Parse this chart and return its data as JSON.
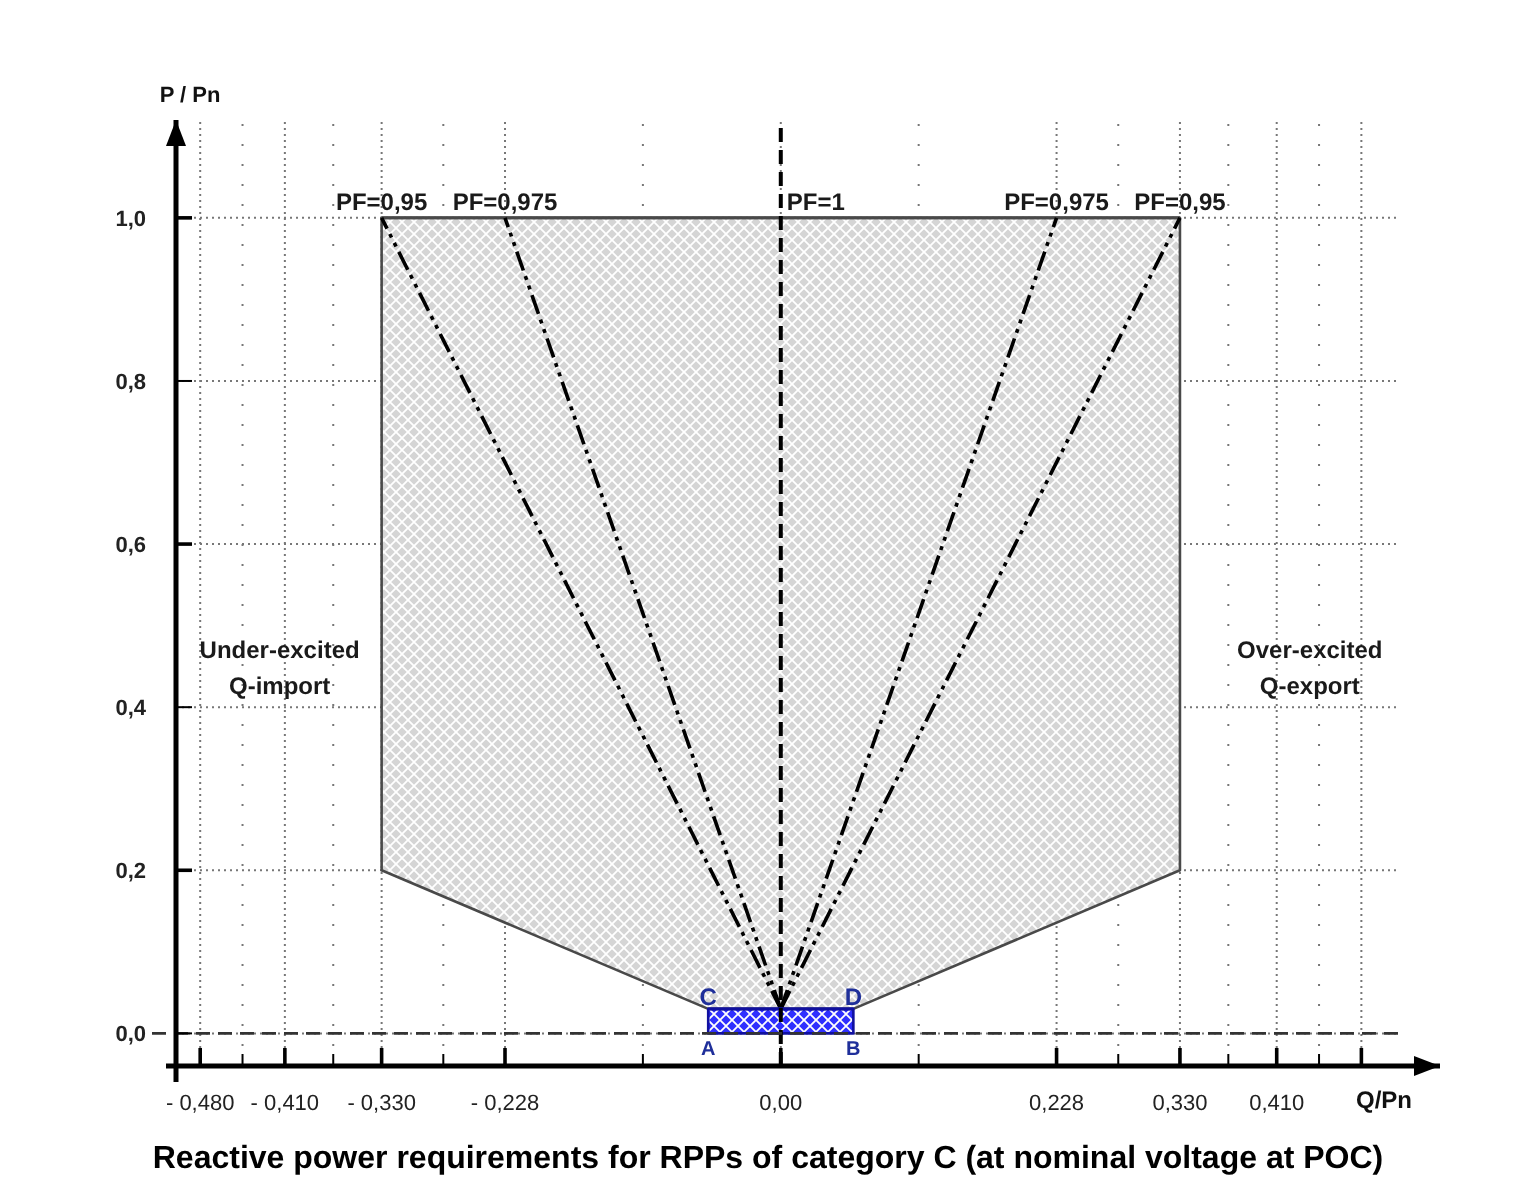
{
  "chart_data": {
    "type": "line",
    "title": "Reactive power requirements for RPPs of category C (at nominal voltage at POC)",
    "xlabel": "Q/Pn",
    "ylabel": "P / Pn",
    "xlim": [
      -0.5,
      0.545
    ],
    "ylim": [
      -0.04,
      1.12
    ],
    "xticks": [
      {
        "value": -0.48,
        "label": "- 0,480"
      },
      {
        "value": -0.445,
        "label": null
      },
      {
        "value": -0.41,
        "label": "- 0,410"
      },
      {
        "value": -0.37,
        "label": null
      },
      {
        "value": -0.33,
        "label": "- 0,330"
      },
      {
        "value": -0.279,
        "label": null
      },
      {
        "value": -0.228,
        "label": "- 0,228"
      },
      {
        "value": -0.114,
        "label": null
      },
      {
        "value": 0,
        "label": "0,00"
      },
      {
        "value": 0.114,
        "label": null
      },
      {
        "value": 0.228,
        "label": "0,228"
      },
      {
        "value": 0.279,
        "label": null
      },
      {
        "value": 0.33,
        "label": "0,330"
      },
      {
        "value": 0.37,
        "label": null
      },
      {
        "value": 0.41,
        "label": "0,410"
      },
      {
        "value": 0.445,
        "label": null
      },
      {
        "value": 0.48,
        "label": null
      }
    ],
    "yticks": [
      {
        "value": 0,
        "label": "0,0"
      },
      {
        "value": 0.2,
        "label": "0,2"
      },
      {
        "value": 0.4,
        "label": "0,4"
      },
      {
        "value": 0.6,
        "label": "0,6"
      },
      {
        "value": 0.8,
        "label": "0,8"
      },
      {
        "value": 1,
        "label": "1,0"
      }
    ],
    "grid": true,
    "series": [
      {
        "color": "#494949",
        "x": [
          -0.33,
          -0.06,
          0.06,
          0.33
        ],
        "values": [
          1,
          1,
          1,
          1
        ],
        "lower": [
          0.2,
          0.03,
          0.03,
          0.2
        ],
        "upper": [
          1,
          1,
          1,
          1
        ]
      },
      {
        "name": "PF=0,95",
        "color": "#000000",
        "line_style": "dashed",
        "x": [
          0,
          -0.33
        ],
        "values": [
          0.03,
          1
        ]
      },
      {
        "name": "PF=0,975",
        "color": "#000000",
        "line_style": "dashed",
        "x": [
          0,
          -0.228
        ],
        "values": [
          0.03,
          1
        ]
      },
      {
        "name": "PF=0,975",
        "color": "#000000",
        "line_style": "dashed",
        "x": [
          0,
          0.228
        ],
        "values": [
          0.03,
          1
        ]
      },
      {
        "name": "PF=0,95",
        "color": "#000000",
        "line_style": "dashed",
        "x": [
          0,
          0.33
        ],
        "values": [
          0.03,
          1
        ]
      },
      {
        "color": "#1010a0",
        "x": [
          -0.06,
          0.06
        ],
        "values": [
          0.03,
          0.03
        ],
        "lower": [
          0,
          0
        ],
        "upper": [
          0.03,
          0.03
        ]
      }
    ],
    "ref_lines": [
      {
        "axis": "x",
        "value": 0,
        "line_style": "dashed",
        "color": "#000000"
      },
      {
        "axis": "y",
        "value": 0,
        "line_style": "dashed",
        "color": "#333333"
      }
    ],
    "annotations": [
      "Under-excited\nQ-import",
      "Over-excited\nQ-export",
      {
        "text": "PF=1",
        "x": 0,
        "y": 1
      },
      {
        "text": "A",
        "x": -0.06,
        "y": 0
      },
      {
        "text": "B",
        "x": 0.06,
        "y": 0
      },
      {
        "text": "C",
        "x": -0.06,
        "y": 0.03
      },
      {
        "text": "D",
        "x": 0.06,
        "y": 0.03
      }
    ]
  }
}
